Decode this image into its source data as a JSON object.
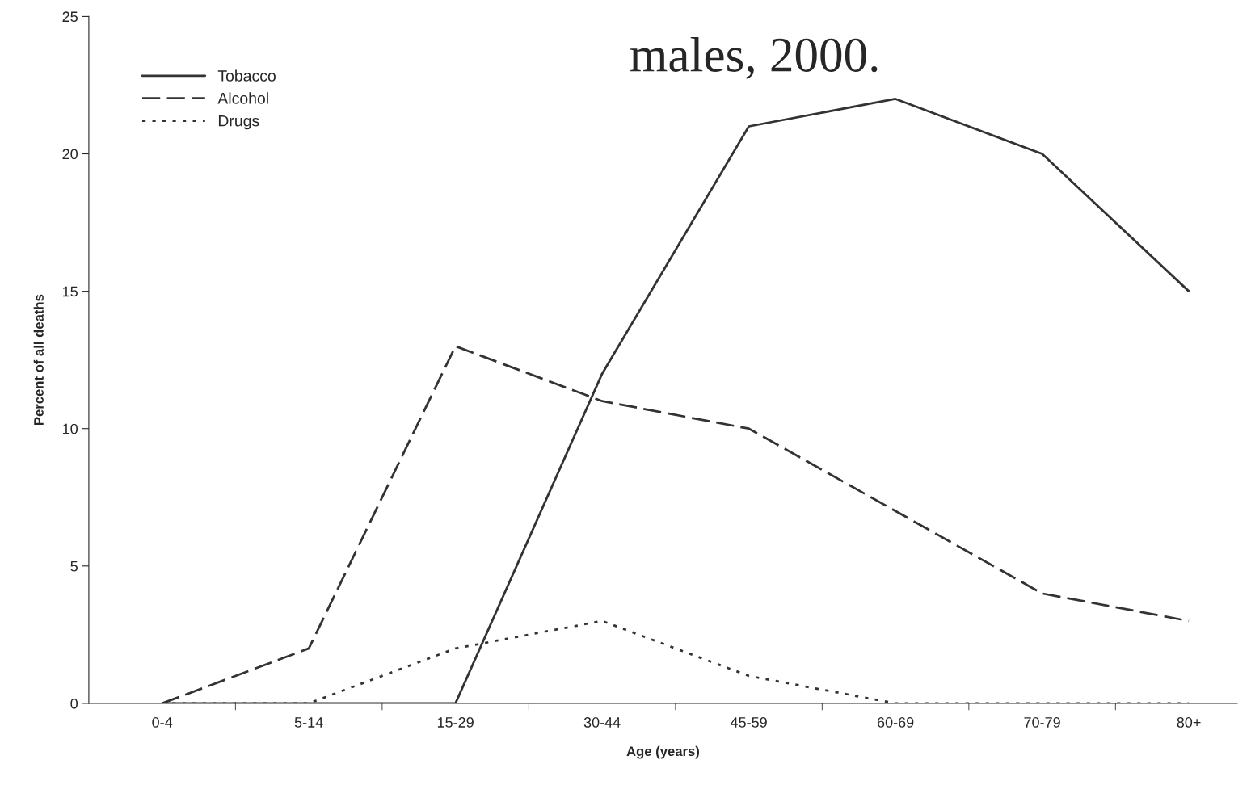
{
  "chart_data": {
    "type": "line",
    "title": "males, 2000.",
    "xlabel": "Age (years)",
    "ylabel": "Percent of all deaths",
    "categories": [
      "0-4",
      "5-14",
      "15-29",
      "30-44",
      "45-59",
      "60-69",
      "70-79",
      "80+"
    ],
    "series": [
      {
        "name": "Tobacco",
        "color": "#333333",
        "line_style": "solid",
        "values": [
          0,
          0,
          0,
          12,
          21,
          22,
          20,
          15
        ]
      },
      {
        "name": "Alcohol",
        "color": "#333333",
        "line_style": "dashed",
        "values": [
          0,
          2,
          13,
          11,
          10,
          7,
          4,
          3
        ]
      },
      {
        "name": "Drugs",
        "color": "#333333",
        "line_style": "dotted",
        "values": [
          0,
          0,
          2,
          3,
          1,
          0,
          0,
          0
        ]
      }
    ],
    "ylim": [
      0,
      25
    ],
    "yticks": [
      0,
      5,
      10,
      15,
      20,
      25
    ],
    "grid": false,
    "legend": "top left"
  }
}
